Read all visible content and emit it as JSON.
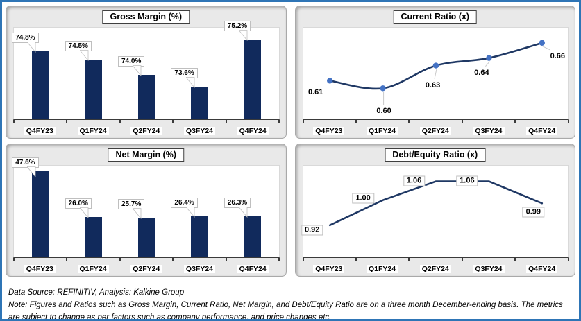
{
  "frame": {
    "border_color": "#2E75B6",
    "background": "#FFFFFF"
  },
  "colors": {
    "bar_fill": "#112A5C",
    "line_stroke": "#1F3864",
    "marker_fill": "#4472C4",
    "leader_line": "#C9C9C9",
    "panel_bg": "#E9E9E9",
    "plot_bg": "#FFFFFF",
    "axis_color": "#3A3A3A",
    "callout_border": "#BFBFBF"
  },
  "chart_data": [
    {
      "id": "gross-margin",
      "type": "bar",
      "title": "Gross Margin (%)",
      "categories": [
        "Q4FY23",
        "Q1FY24",
        "Q2FY24",
        "Q3FY24",
        "Q4FY24"
      ],
      "values": [
        74.8,
        74.5,
        74.0,
        73.6,
        75.2
      ],
      "labels": [
        "74.8%",
        "74.5%",
        "74.0%",
        "73.6%",
        "75.2%"
      ],
      "ylim": [
        72.5,
        75.6
      ],
      "grid": false,
      "legend": false,
      "label_style": "callout-box"
    },
    {
      "id": "current-ratio",
      "type": "line",
      "smooth": true,
      "markers": true,
      "title": "Current Ratio (x)",
      "categories": [
        "Q4FY23",
        "Q1FY24",
        "Q2FY24",
        "Q3FY24",
        "Q4FY24"
      ],
      "values": [
        0.61,
        0.6,
        0.63,
        0.64,
        0.66
      ],
      "labels": [
        "0.61",
        "0.60",
        "0.63",
        "0.64",
        "0.66"
      ],
      "ylim": [
        0.56,
        0.68
      ],
      "grid": false,
      "legend": false,
      "label_style": "plain-below"
    },
    {
      "id": "net-margin",
      "type": "bar",
      "title": "Net Margin (%)",
      "categories": [
        "Q4FY23",
        "Q1FY24",
        "Q2FY24",
        "Q3FY24",
        "Q4FY24"
      ],
      "values": [
        47.6,
        26.0,
        25.7,
        26.4,
        26.3
      ],
      "labels": [
        "47.6%",
        "26.0%",
        "25.7%",
        "26.4%",
        "26.3%"
      ],
      "ylim": [
        7.5,
        50
      ],
      "grid": false,
      "legend": false,
      "label_style": "callout-box"
    },
    {
      "id": "debt-equity",
      "type": "line",
      "smooth": false,
      "markers": false,
      "title": "Debt/Equity Ratio (x)",
      "categories": [
        "Q4FY23",
        "Q1FY24",
        "Q2FY24",
        "Q3FY24",
        "Q4FY24"
      ],
      "values": [
        0.92,
        1.0,
        1.06,
        1.06,
        0.99
      ],
      "labels": [
        "0.92",
        "1.00",
        "1.06",
        "1.06",
        "0.99"
      ],
      "ylim": [
        0.82,
        1.11
      ],
      "grid": false,
      "legend": false,
      "label_style": "box-at-point"
    }
  ],
  "footer": {
    "source_line": "Data Source: REFINITIV, Analysis: Kalkine Group",
    "note_line": "Note: Figures and Ratios such as Gross Margin, Current Ratio, Net Margin, and Debt/Equity Ratio are on a three month December-ending basis. The metrics are subject to change as per factors such as company performance, and price changes etc."
  }
}
